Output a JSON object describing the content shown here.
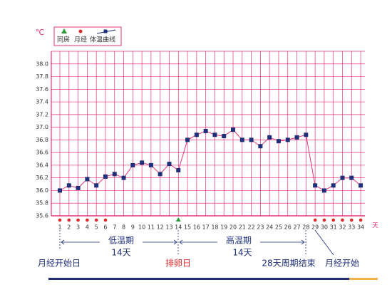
{
  "chart_data": {
    "type": "line",
    "unit": "℃",
    "x_unit": "天",
    "legend": {
      "intercourse": "同房",
      "period": "月经",
      "temperature": "体温曲线"
    },
    "categories": [
      "1",
      "2",
      "3",
      "4",
      "5",
      "6",
      "7",
      "8",
      "9",
      "10",
      "11",
      "12",
      "13",
      "14",
      "15",
      "16",
      "17",
      "18",
      "19",
      "20",
      "21",
      "22",
      "23",
      "24",
      "25",
      "26",
      "27",
      "28",
      "29",
      "30",
      "31",
      "32",
      "33",
      "34"
    ],
    "series": [
      {
        "name": "体温曲线",
        "color": "#1f2f7a",
        "values": [
          36.0,
          36.08,
          36.04,
          36.18,
          36.08,
          36.22,
          36.26,
          36.2,
          36.4,
          36.44,
          36.4,
          36.26,
          36.42,
          36.32,
          36.8,
          36.88,
          36.94,
          36.88,
          36.86,
          36.96,
          36.8,
          36.8,
          36.7,
          36.84,
          36.78,
          36.8,
          36.84,
          36.88,
          36.08,
          36.0,
          36.08,
          36.2,
          36.2,
          36.08
        ]
      }
    ],
    "period_days": [
      1,
      2,
      3,
      4,
      5,
      6,
      29,
      30,
      31,
      32,
      33,
      34
    ],
    "intercourse_days": [
      14
    ],
    "ylim": [
      35.6,
      38.2
    ],
    "yticks": [
      {
        "value": 35.6,
        "label": "35.6"
      },
      {
        "value": 35.8,
        "label": "35.8"
      },
      {
        "value": 36,
        "label": "36.0"
      },
      {
        "value": 36.2,
        "label": "36.2"
      },
      {
        "value": 36.4,
        "label": "36.4"
      },
      {
        "value": 36.6,
        "label": "36.6"
      },
      {
        "value": 36.8,
        "label": "36.8"
      },
      {
        "value": 37,
        "label": "37.0"
      },
      {
        "value": 37.2,
        "label": "37.2"
      },
      {
        "value": 37.4,
        "label": "37.4"
      },
      {
        "value": 37.6,
        "label": "37.6"
      },
      {
        "value": 37.8,
        "label": "37.8"
      },
      {
        "value": 38,
        "label": "38.0"
      }
    ],
    "grid": true,
    "annotations": {
      "low_phase": "低温期",
      "low_days": "14天",
      "high_phase": "高温期",
      "high_days": "14天",
      "period_start": "月经开始日",
      "ovulation": "排卵日",
      "cycle_end": "28天周期结束",
      "next_period": "月经开始"
    }
  }
}
